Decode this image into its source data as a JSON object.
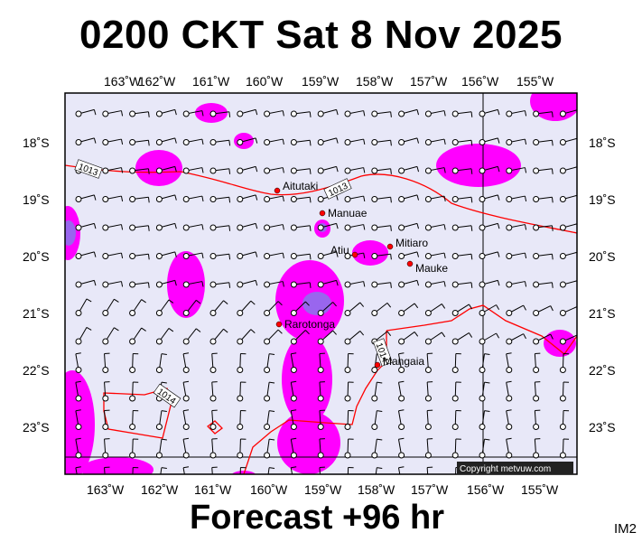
{
  "header": {
    "title": "0200 CKT Sat 8 Nov 2025"
  },
  "footer": {
    "forecast": "Forecast +96 hr",
    "code": "IM2"
  },
  "map": {
    "copyright": "Copyright metvuw.com",
    "colors": {
      "ocean": "#e8e8f8",
      "rain_light": "#ff00ff",
      "rain_heavy": "#9966ee",
      "isobar": "#ff0000",
      "town": "#ff0000"
    },
    "longitude_labels": [
      "163˚W",
      "162˚W",
      "161˚W",
      "160˚W",
      "159˚W",
      "158˚W",
      "157˚W",
      "156˚W",
      "155˚W"
    ],
    "latitude_labels": [
      "18˚S",
      "19˚S",
      "20˚S",
      "21˚S",
      "22˚S",
      "23˚S"
    ],
    "isobar_labels": [
      "1013",
      "1013",
      "1014",
      "1014"
    ],
    "towns": [
      "Aitutaki",
      "Manuae",
      "Mitiaro",
      "Atiu",
      "Mauke",
      "Rarotonga",
      "Mangaia"
    ]
  }
}
